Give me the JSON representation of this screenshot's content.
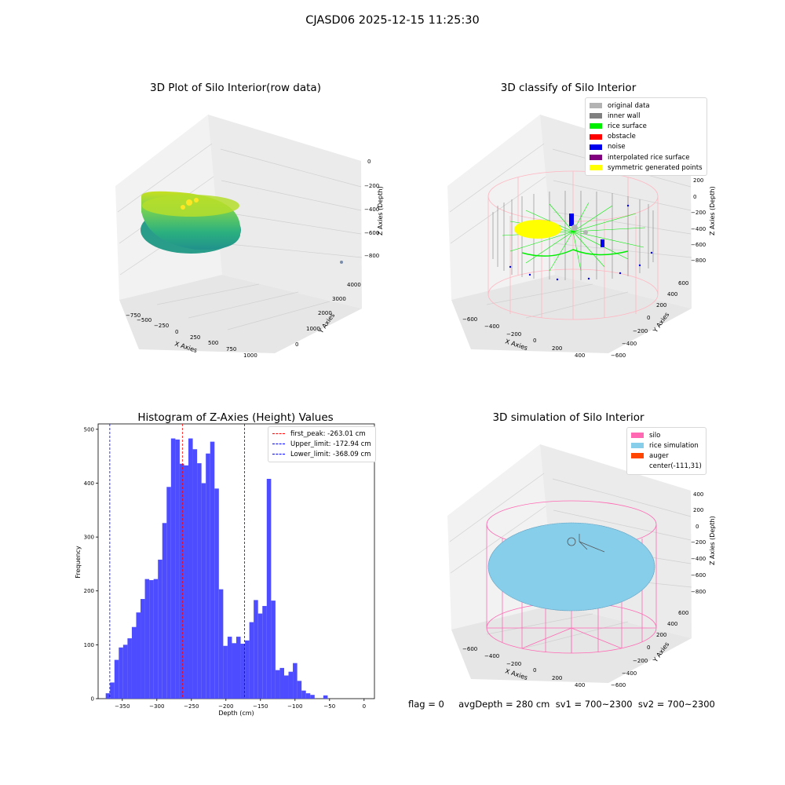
{
  "figure_title": "CJASD06 2025-12-15 11:25:30",
  "panels": {
    "raw": {
      "title": "3D Plot of Silo Interior(row data)",
      "x_label": "X Axies",
      "y_label": "Y Axies",
      "z_label": "Z Axies (Depth)",
      "x_ticks": [
        "−750",
        "−500",
        "−250",
        "0",
        "250",
        "500",
        "750",
        "1000"
      ],
      "y_ticks": [
        "0",
        "1000",
        "2000",
        "3000",
        "4000"
      ],
      "z_ticks": [
        "0",
        "−200",
        "−400",
        "−600",
        "−800"
      ]
    },
    "classify": {
      "title": "3D classify of Silo Interior",
      "x_label": "X Axies",
      "y_label": "Y Axies",
      "z_label": "Z Axies (Depth)",
      "x_ticks": [
        "−600",
        "−400",
        "−200",
        "0",
        "200",
        "400"
      ],
      "y_ticks": [
        "−600",
        "−400",
        "−200",
        "0",
        "200",
        "400",
        "600"
      ],
      "z_ticks": [
        "200",
        "0",
        "−200",
        "−400",
        "−600",
        "−800"
      ],
      "z_top_tick": "0",
      "legend": [
        {
          "label": "original data",
          "color": "#b3b3b3"
        },
        {
          "label": "inner wall",
          "color": "#808080"
        },
        {
          "label": "rice surface",
          "color": "#00ee00"
        },
        {
          "label": "obstacle",
          "color": "#ff0000"
        },
        {
          "label": "noise",
          "color": "#0000ee"
        },
        {
          "label": "interpolated rice surface",
          "color": "#800080"
        },
        {
          "label": "symmetric generated points",
          "color": "#ffff00"
        }
      ]
    },
    "histogram": {
      "title": "Histogram of Z-Axies (Height) Values",
      "x_label": "Depth (cm)",
      "y_label": "Frequency",
      "x_ticks": [
        "−350",
        "−300",
        "−250",
        "−200",
        "−150",
        "−100",
        "−50",
        "0"
      ],
      "y_ticks": [
        "0",
        "100",
        "200",
        "300",
        "400",
        "500"
      ],
      "legend": [
        {
          "label": "first_peak: -263.01 cm",
          "color": "#ff0000"
        },
        {
          "label": "Upper_limit: -172.94 cm",
          "color": "#0000ff"
        },
        {
          "label": "Lower_limit: -368.09 cm",
          "color": "#0000ff"
        }
      ],
      "bar_color": "#4d4dff"
    },
    "simulation": {
      "title": "3D simulation of Silo Interior",
      "x_label": "X Axies",
      "y_label": "Y Axies",
      "z_label": "Z Axies (Depth)",
      "x_ticks": [
        "−600",
        "−400",
        "−200",
        "0",
        "200",
        "400"
      ],
      "y_ticks": [
        "−600",
        "−400",
        "−200",
        "0",
        "200",
        "400",
        "600"
      ],
      "z_ticks": [
        "400",
        "200",
        "0",
        "−200",
        "−400",
        "−600",
        "−800"
      ],
      "legend": [
        {
          "label": "silo",
          "color": "#ff69b4"
        },
        {
          "label": "rice simulation",
          "color": "#87ceeb"
        },
        {
          "label": "auger",
          "color": "#ff4500"
        },
        {
          "label": "center(-111,31)",
          "color": ""
        }
      ]
    }
  },
  "footer": {
    "text": "flag = 0     avgDepth = 280 cm  sv1 = 700~2300  sv2 = 700~2300"
  },
  "chart_data": {
    "type": "bar",
    "title": "Histogram of Z-Axies (Height) Values",
    "xlabel": "Depth (cm)",
    "ylabel": "Frequency",
    "xlim": [
      -385,
      15
    ],
    "ylim": [
      0,
      510
    ],
    "bin_width": 6.3,
    "bin_edges_start": -374,
    "values": [
      10,
      30,
      72,
      95,
      100,
      112,
      133,
      160,
      185,
      222,
      220,
      222,
      258,
      326,
      393,
      483,
      481,
      436,
      433,
      483,
      463,
      437,
      400,
      455,
      477,
      390,
      203,
      98,
      115,
      103,
      115,
      102,
      108,
      142,
      183,
      158,
      172,
      408,
      182,
      53,
      57,
      43,
      50,
      66,
      33,
      15,
      10,
      7,
      0,
      0,
      6,
      0
    ],
    "vlines": [
      {
        "x": -263.01,
        "name": "first_peak",
        "color": "#ff0000"
      },
      {
        "x": -172.94,
        "name": "Upper_limit",
        "color": "#0000ff"
      },
      {
        "x": -368.09,
        "name": "Lower_limit",
        "color": "#0000ff"
      }
    ],
    "legend_position": "top-right",
    "grid": false
  }
}
